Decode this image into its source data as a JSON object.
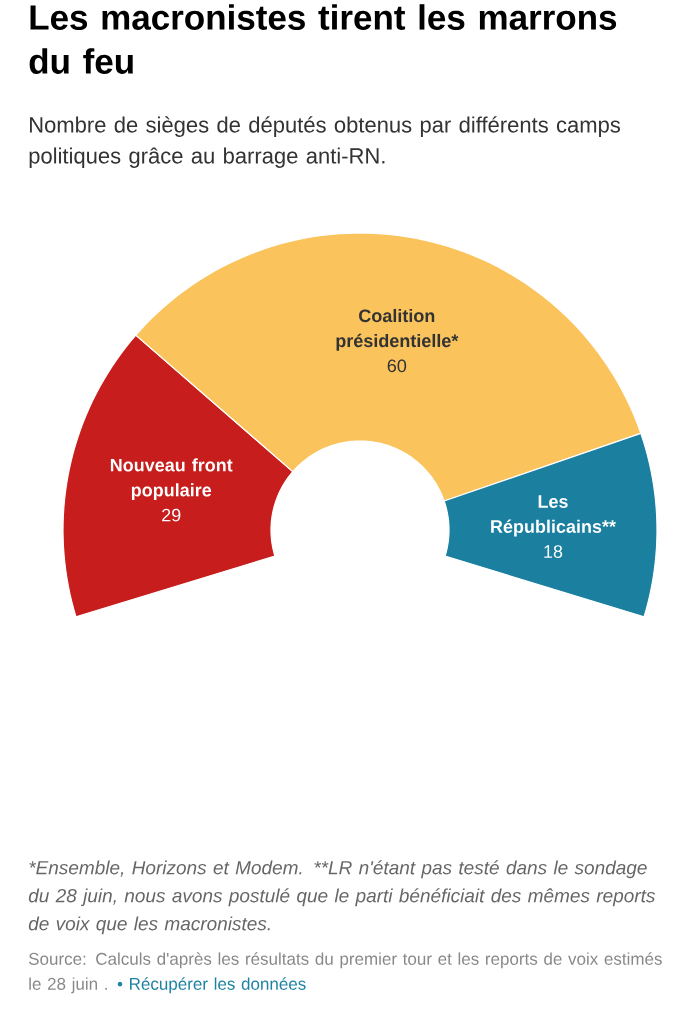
{
  "chart_data": {
    "type": "donut",
    "title": "Les macronistes tirent les marrons du feu",
    "subtitle": "Nombre de sièges de députés obtenus par différents camps politiques grâce au barrage anti-RN.",
    "categories": [
      "Nouveau front populaire",
      "Coalition présidentielle*",
      "Les Républicains**"
    ],
    "values": [
      29,
      60,
      18
    ],
    "colors": [
      "#c71e1d",
      "#fac35b",
      "#1b7fa0"
    ],
    "data_labels": true,
    "annotations": [
      "*Ensemble, Horizons et Modem. **LR n'étant pas testé dans le sondage du 28 juin, nous avons postulé que le parti bénéficiait des mêmes reports de voix que les macronistes.",
      "Source: Calculs d'après les résultats du premier tour et les reports de voix estimés le 28 juin .",
      "• Récupérer les données"
    ]
  }
}
